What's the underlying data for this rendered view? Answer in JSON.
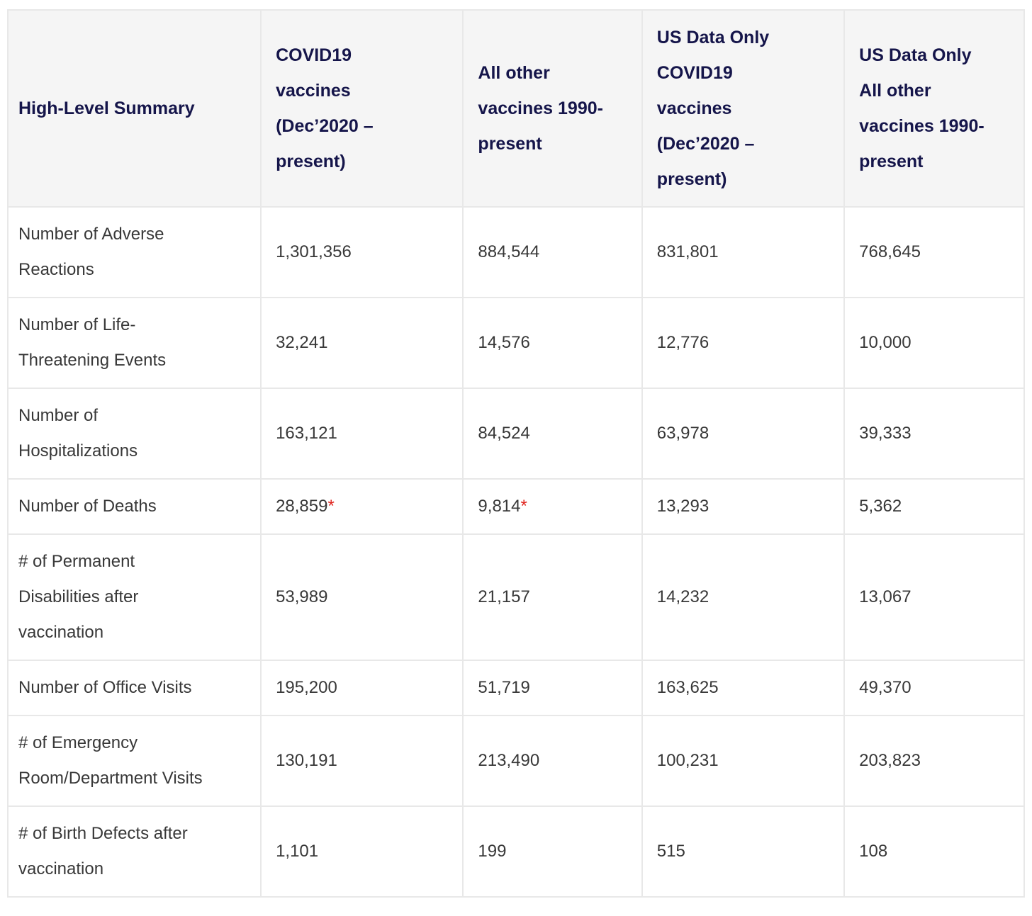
{
  "chart_data": {
    "type": "table",
    "title": "High-Level Summary",
    "columns": [
      "High-Level Summary",
      "COVID19\nvaccines\n(Dec’2020 –\npresent)",
      "All other\nvaccines 1990-\npresent",
      "US Data Only\nCOVID19\nvaccines\n(Dec’2020 –\npresent)",
      "US Data Only\nAll other\nvaccines 1990-\npresent"
    ],
    "asterisk_symbol": "*",
    "rows": [
      {
        "label": "Number of Adverse\nReactions",
        "values": [
          "1,301,356",
          "884,544",
          "831,801",
          "768,645"
        ],
        "asterisk": [
          false,
          false,
          false,
          false
        ]
      },
      {
        "label": "Number of Life-\nThreatening Events",
        "values": [
          "32,241",
          "14,576",
          "12,776",
          "10,000"
        ],
        "asterisk": [
          false,
          false,
          false,
          false
        ]
      },
      {
        "label": "Number of\nHospitalizations",
        "values": [
          "163,121",
          "84,524",
          "63,978",
          "39,333"
        ],
        "asterisk": [
          false,
          false,
          false,
          false
        ]
      },
      {
        "label": "Number of Deaths",
        "values": [
          "28,859",
          "9,814",
          "13,293",
          "5,362"
        ],
        "asterisk": [
          true,
          true,
          false,
          false
        ]
      },
      {
        "label": "# of Permanent\nDisabilities after\nvaccination",
        "values": [
          "53,989",
          "21,157",
          "14,232",
          "13,067"
        ],
        "asterisk": [
          false,
          false,
          false,
          false
        ]
      },
      {
        "label": "Number of Office Visits",
        "values": [
          "195,200",
          "51,719",
          "163,625",
          "49,370"
        ],
        "asterisk": [
          false,
          false,
          false,
          false
        ]
      },
      {
        "label": "# of Emergency\nRoom/Department Visits",
        "values": [
          "130,191",
          "213,490",
          "100,231",
          "203,823"
        ],
        "asterisk": [
          false,
          false,
          false,
          false
        ]
      },
      {
        "label": "# of Birth Defects after\nvaccination",
        "values": [
          "1,101",
          "199",
          "515",
          "108"
        ],
        "asterisk": [
          false,
          false,
          false,
          false
        ]
      }
    ]
  },
  "colors": {
    "header-text": "#15154a",
    "body-text": "#383838",
    "header-bg": "#f5f5f5",
    "row-bg": "#ffffff",
    "border": "#e8e8e8",
    "asterisk": "#df231d"
  }
}
